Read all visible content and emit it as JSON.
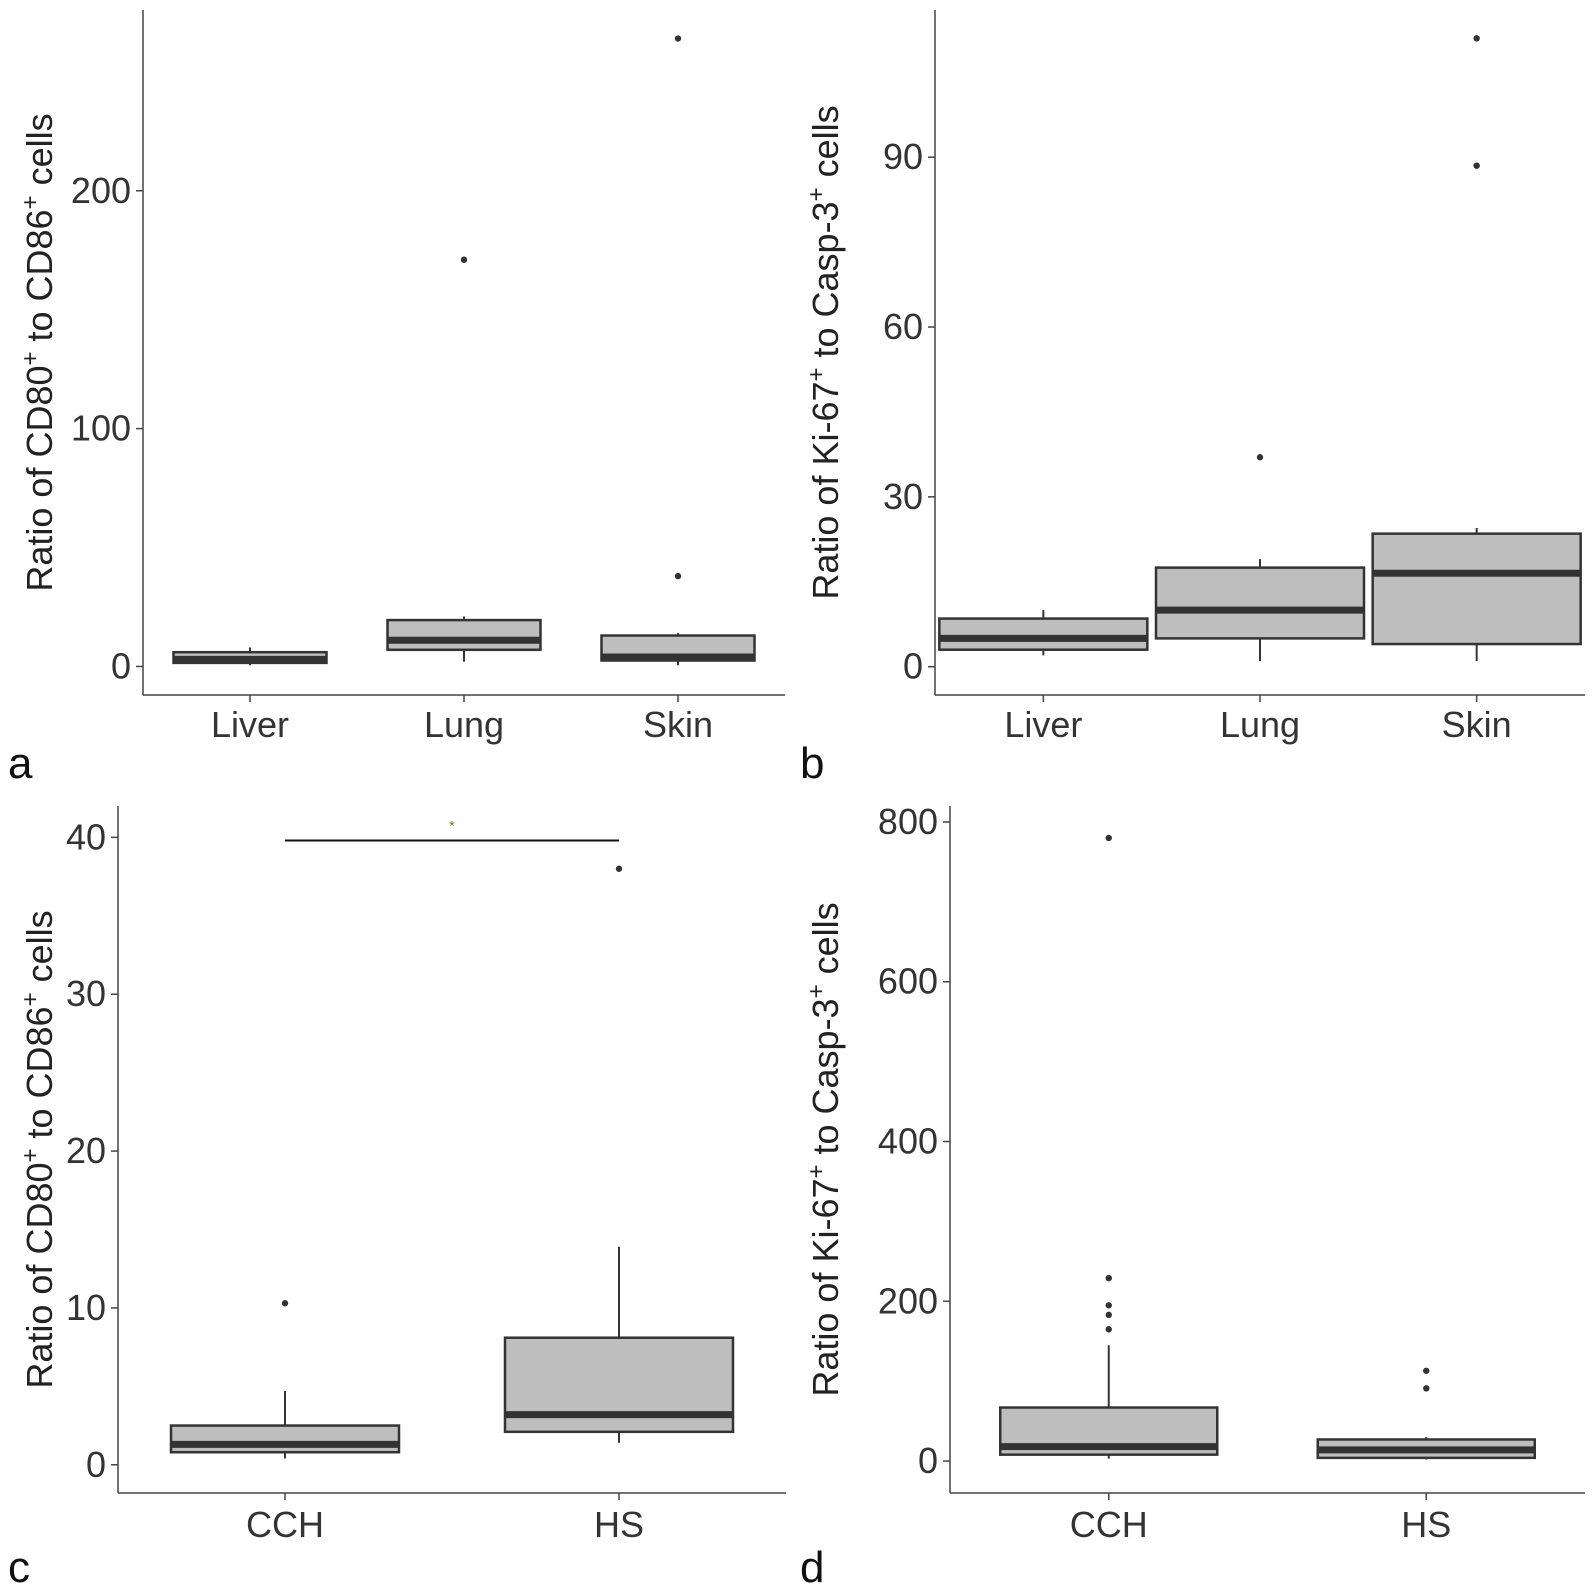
{
  "figure": {
    "colors": {
      "box_fill": "#bebebe",
      "box_stroke": "#333333",
      "axis": "#444444",
      "text": "#333333"
    }
  },
  "chart_data": [
    {
      "panel": "a",
      "type": "box",
      "ylabel_parts": [
        "Ratio of CD80",
        "+",
        " to CD86",
        "+",
        " cells"
      ],
      "xlabel": "",
      "ylim": [
        -12,
        276
      ],
      "yticks": [
        0,
        100,
        200
      ],
      "categories": [
        "Liver",
        "Lung",
        "Skin"
      ],
      "boxes": [
        {
          "category": "Liver",
          "min": 0.5,
          "q1": 1.5,
          "median": 3,
          "q3": 6,
          "max": 8,
          "outliers": []
        },
        {
          "category": "Lung",
          "min": 2,
          "q1": 7,
          "median": 11,
          "q3": 19.5,
          "max": 21,
          "outliers": [
            171
          ]
        },
        {
          "category": "Skin",
          "min": 0.5,
          "q1": 2.5,
          "median": 4,
          "q3": 13,
          "max": 14,
          "outliers": [
            38,
            264
          ]
        }
      ],
      "significance": null
    },
    {
      "panel": "b",
      "type": "box",
      "ylabel_parts": [
        "Ratio of Ki-67",
        "+",
        " to Casp-3",
        "+",
        " cells"
      ],
      "xlabel": "",
      "ylim": [
        -5,
        116
      ],
      "yticks": [
        0,
        30,
        60,
        90
      ],
      "categories": [
        "Liver",
        "Lung",
        "Skin"
      ],
      "boxes": [
        {
          "category": "Liver",
          "min": 2,
          "q1": 3,
          "median": 5,
          "q3": 8.5,
          "max": 10,
          "outliers": []
        },
        {
          "category": "Lung",
          "min": 1,
          "q1": 5,
          "median": 10,
          "q3": 17.5,
          "max": 19,
          "outliers": [
            37
          ]
        },
        {
          "category": "Skin",
          "min": 1,
          "q1": 4,
          "median": 16.5,
          "q3": 23.5,
          "max": 24.5,
          "outliers": [
            88.5,
            111
          ]
        }
      ],
      "significance": null
    },
    {
      "panel": "c",
      "type": "box",
      "ylabel_parts": [
        "Ratio of CD80",
        "+",
        " to CD86",
        "+",
        " cells"
      ],
      "xlabel": "",
      "ylim": [
        -1.8,
        42
      ],
      "yticks": [
        0,
        10,
        20,
        30,
        40
      ],
      "categories": [
        "CCH",
        "HS"
      ],
      "boxes": [
        {
          "category": "CCH",
          "min": 0.4,
          "q1": 0.8,
          "median": 1.3,
          "q3": 2.5,
          "max": 4.7,
          "outliers": [
            10.3
          ]
        },
        {
          "category": "HS",
          "min": 1.4,
          "q1": 2.1,
          "median": 3.2,
          "q3": 8.1,
          "max": 13.9,
          "outliers": [
            38
          ]
        }
      ],
      "significance": {
        "from": "CCH",
        "to": "HS",
        "y": 39.8,
        "label": "*"
      }
    },
    {
      "panel": "d",
      "type": "box",
      "ylabel_parts": [
        "Ratio of Ki-67",
        "+",
        " to Casp-3",
        "+",
        " cells"
      ],
      "xlabel": "",
      "ylim": [
        -40,
        820
      ],
      "yticks": [
        0,
        200,
        400,
        600,
        800
      ],
      "categories": [
        "CCH",
        "HS"
      ],
      "boxes": [
        {
          "category": "CCH",
          "min": 3,
          "q1": 8,
          "median": 18,
          "q3": 67,
          "max": 145,
          "outliers": [
            165,
            183,
            195,
            229,
            780
          ]
        },
        {
          "category": "HS",
          "min": 2,
          "q1": 4,
          "median": 14,
          "q3": 27,
          "max": 30,
          "outliers": [
            91,
            113
          ]
        }
      ],
      "significance": null
    }
  ]
}
